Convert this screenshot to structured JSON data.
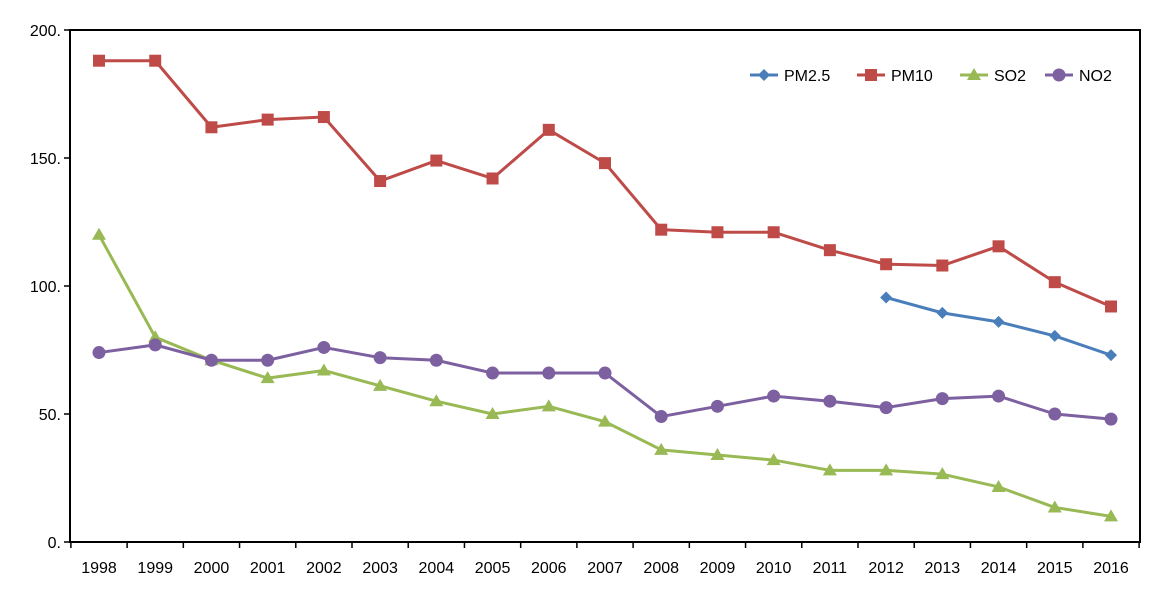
{
  "chart_data": {
    "type": "line",
    "title": "",
    "xlabel": "",
    "ylabel": "",
    "categories": [
      "1998",
      "1999",
      "2000",
      "2001",
      "2002",
      "2003",
      "2004",
      "2005",
      "2006",
      "2007",
      "2008",
      "2009",
      "2010",
      "2011",
      "2012",
      "2013",
      "2014",
      "2015",
      "2016"
    ],
    "ylim": [
      0,
      200
    ],
    "yticks": [
      {
        "value": 0,
        "label": "0."
      },
      {
        "value": 50,
        "label": "50."
      },
      {
        "value": 100,
        "label": "100."
      },
      {
        "value": 150,
        "label": "150."
      },
      {
        "value": 200,
        "label": "200."
      }
    ],
    "grid": false,
    "legend_position": "top-right",
    "series": [
      {
        "name": "PM2.5",
        "color": "#4a7ebb",
        "marker": "diamond",
        "values": [
          null,
          null,
          null,
          null,
          null,
          null,
          null,
          null,
          null,
          null,
          null,
          null,
          null,
          null,
          95.5,
          89.5,
          86,
          80.5,
          73
        ]
      },
      {
        "name": "PM10",
        "color": "#be4b48",
        "marker": "square",
        "values": [
          188,
          188,
          162,
          165,
          166,
          141,
          149,
          142,
          161,
          148,
          122,
          121,
          121,
          114,
          108.5,
          108,
          115.5,
          101.5,
          92
        ]
      },
      {
        "name": "SO2",
        "color": "#98b954",
        "marker": "triangle",
        "values": [
          120,
          80,
          71,
          64,
          67,
          61,
          55,
          50,
          53,
          47,
          36,
          34,
          32,
          28,
          28,
          26.5,
          21.5,
          13.5,
          10
        ]
      },
      {
        "name": "NO2",
        "color": "#7d60a0",
        "marker": "circle",
        "values": [
          74,
          77,
          71,
          71,
          76,
          72,
          71,
          66,
          66,
          66,
          49,
          53,
          57,
          55,
          52.5,
          56,
          57,
          50,
          48
        ]
      }
    ]
  }
}
